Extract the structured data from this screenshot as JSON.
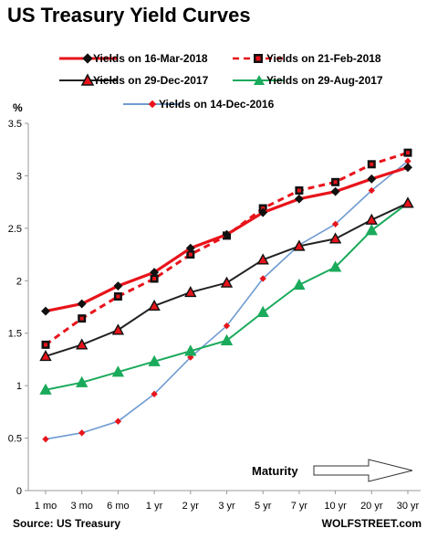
{
  "chart_data": {
    "type": "line",
    "title": "US Treasury Yield Curves",
    "ylabel": "%",
    "categories": [
      "1 mo",
      "3 mo",
      "6 mo",
      "1 yr",
      "2 yr",
      "3 yr",
      "5 yr",
      "7 yr",
      "10 yr",
      "20 yr",
      "30 yr"
    ],
    "ylim": [
      0,
      3.5
    ],
    "yticks": [
      "0",
      "0.5",
      "1",
      "1.5",
      "2",
      "2.5",
      "3",
      "3.5"
    ],
    "grid": false,
    "legend_position": "top",
    "series": [
      {
        "name": "Yields on 16-Mar-2018",
        "color": "#e8141b",
        "line": "solid-thick",
        "marker": "diamond",
        "values": [
          1.71,
          1.78,
          1.95,
          2.08,
          2.31,
          2.44,
          2.65,
          2.78,
          2.85,
          2.97,
          3.08
        ]
      },
      {
        "name": "Yields on 21-Feb-2018",
        "color": "#e8141b",
        "line": "dashed",
        "marker": "square",
        "values": [
          1.39,
          1.64,
          1.85,
          2.02,
          2.25,
          2.43,
          2.69,
          2.86,
          2.94,
          3.11,
          3.22
        ]
      },
      {
        "name": "Yields on 29-Dec-2017",
        "color": "#222222",
        "line": "solid",
        "marker": "triangle",
        "values": [
          1.28,
          1.39,
          1.53,
          1.76,
          1.89,
          1.98,
          2.2,
          2.33,
          2.4,
          2.58,
          2.74
        ]
      },
      {
        "name": "Yields on 29-Aug-2017",
        "color": "#1aaa5b",
        "line": "solid",
        "marker": "triangle",
        "values": [
          0.96,
          1.03,
          1.13,
          1.23,
          1.33,
          1.43,
          1.7,
          1.96,
          2.13,
          2.48,
          2.74
        ]
      },
      {
        "name": "Yields on 14-Dec-2016",
        "color": "#6f9bd1",
        "line": "solid-thin",
        "marker": "small-diamond",
        "values": [
          0.49,
          0.55,
          0.66,
          0.92,
          1.27,
          1.57,
          2.02,
          2.34,
          2.54,
          2.86,
          3.14
        ]
      }
    ],
    "annotation": "Maturity",
    "source": "Source: US Treasury",
    "credit": "WOLFSTREET.com"
  }
}
